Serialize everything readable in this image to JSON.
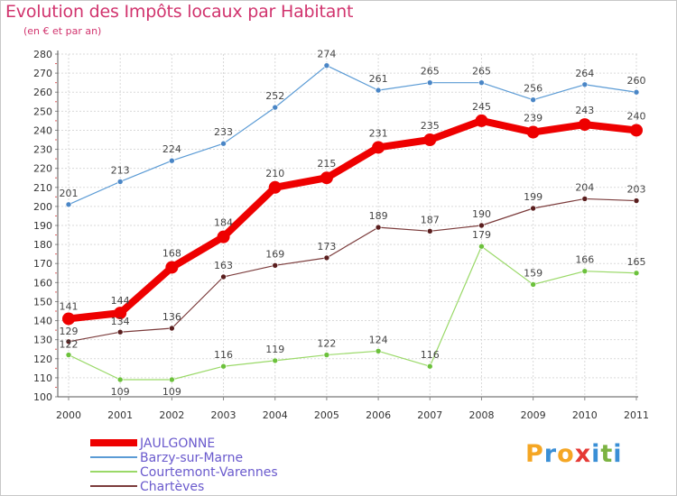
{
  "chart_data": {
    "type": "line",
    "title": "Evolution des Impôts locaux par Habitant",
    "subtitle": "(en € et par an)",
    "xlabel": "",
    "ylabel": "",
    "ylim": [
      100,
      280
    ],
    "ytick_step": 10,
    "grid": true,
    "legend_position": "bottom-left",
    "categories": [
      "2000",
      "2001",
      "2002",
      "2003",
      "2004",
      "2005",
      "2006",
      "2007",
      "2008",
      "2009",
      "2010",
      "2011"
    ],
    "series": [
      {
        "name": "Barzy-sur-Marne",
        "color": "#5b9bd5",
        "dot": "#4a86c6",
        "width": 1.2,
        "radius": 3,
        "values": [
          201,
          213,
          224,
          233,
          252,
          274,
          261,
          265,
          265,
          256,
          264,
          260
        ],
        "label_dy": [
          -9,
          -9,
          -9,
          -9,
          -9,
          -9,
          -9,
          -9,
          -9,
          -9,
          -9,
          -9
        ]
      },
      {
        "name": "Chartèves",
        "color": "#7b3b3b",
        "dot": "#5a1e1e",
        "width": 1.2,
        "radius": 3,
        "values": [
          129,
          134,
          136,
          163,
          169,
          173,
          189,
          187,
          190,
          199,
          204,
          203
        ],
        "label_dy": [
          -8,
          -8,
          -9,
          -9,
          -9,
          -9,
          -9,
          -9,
          -9,
          -9,
          -9,
          -9
        ]
      },
      {
        "name": "Courtemont-Varennes",
        "color": "#9ad968",
        "dot": "#6cc13c",
        "width": 1.2,
        "radius": 3,
        "values": [
          122,
          109,
          109,
          116,
          119,
          122,
          124,
          116,
          179,
          159,
          166,
          165
        ],
        "label_dy": [
          -8,
          17,
          17,
          -9,
          -9,
          -9,
          -9,
          -9,
          -9,
          -9,
          -9,
          -9
        ]
      },
      {
        "name": "JAULGONNE",
        "color": "#ee0000",
        "dot": "#ee0000",
        "width": 8,
        "radius": 7,
        "values": [
          141,
          144,
          168,
          184,
          210,
          215,
          231,
          235,
          245,
          239,
          243,
          240
        ],
        "label_dy": [
          -10,
          -10,
          -12,
          -12,
          -12,
          -12,
          -12,
          -12,
          -12,
          -12,
          -12,
          -12
        ]
      }
    ],
    "legend": [
      {
        "name": "JAULGONNE",
        "color": "#ee0000",
        "thickness": 8
      },
      {
        "name": "Barzy-sur-Marne",
        "color": "#5b9bd5",
        "thickness": 2
      },
      {
        "name": "Courtemont-Varennes",
        "color": "#9ad968",
        "thickness": 2
      },
      {
        "name": "Chartèves",
        "color": "#7b3b3b",
        "thickness": 2
      }
    ]
  },
  "branding": {
    "logo_text": "Proxiti",
    "logo_colors": [
      "#f5a623",
      "#3a8fd6",
      "#f5a623",
      "#e53935",
      "#3a8fd6",
      "#7cb342",
      "#3a8fd6"
    ]
  }
}
